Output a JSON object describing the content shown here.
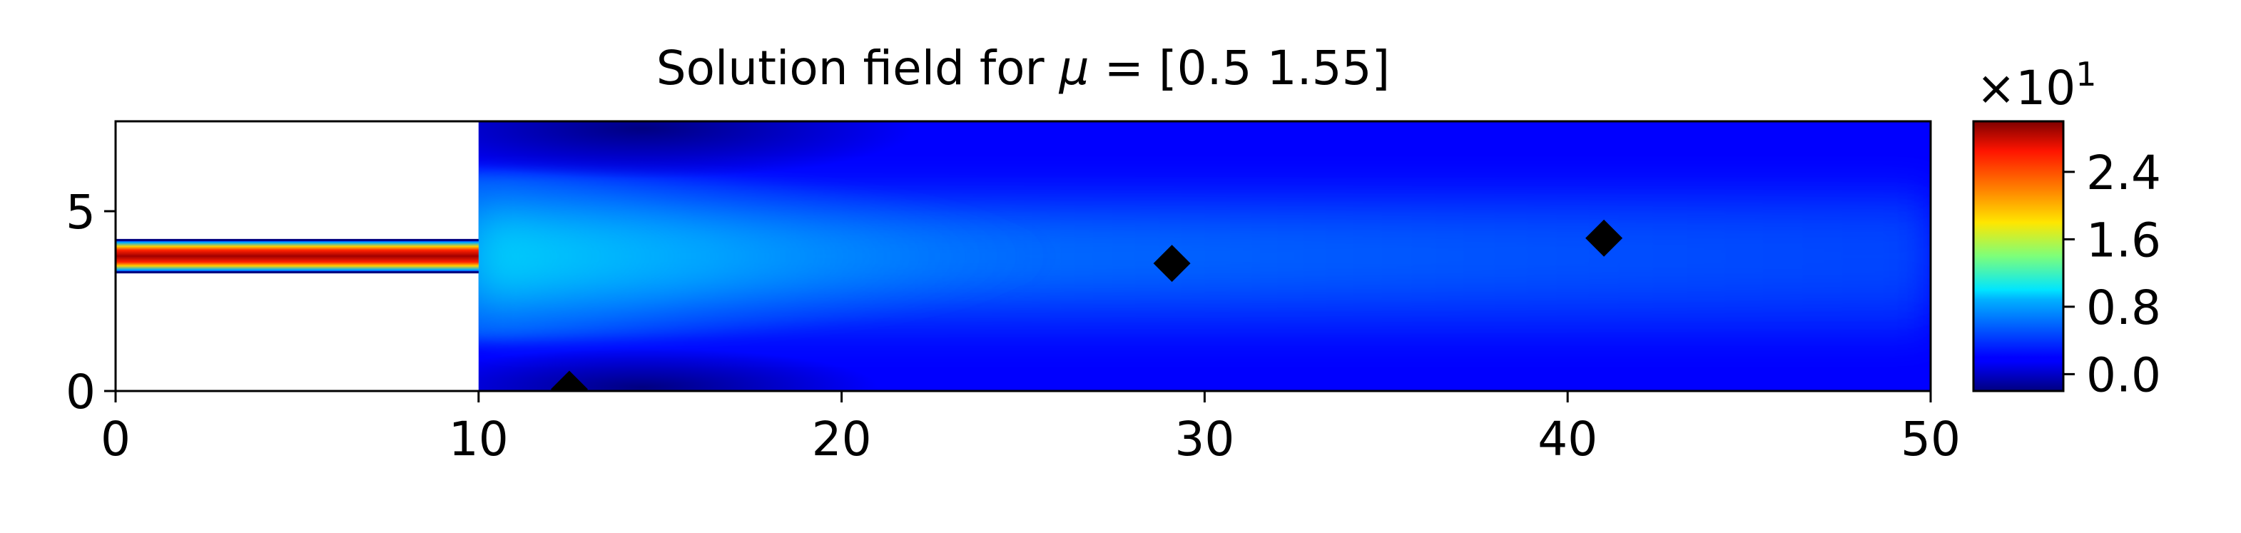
{
  "chart_data": {
    "type": "heatmap",
    "title": "Solution field for μ = [0.5  1.55]",
    "title_prefix": "Solution field for ",
    "title_mu": "μ",
    "title_suffix": " = [0.5  1.55]",
    "xlabel": "",
    "ylabel": "",
    "xlim": [
      0,
      50
    ],
    "ylim": [
      0,
      7.5
    ],
    "x_ticks": [
      0,
      10,
      20,
      30,
      40,
      50
    ],
    "y_ticks": [
      0,
      5
    ],
    "colormap": "jet",
    "colorbar": {
      "range": [
        -0.2,
        3.0
      ],
      "ticks": [
        0.0,
        0.8,
        1.6,
        2.4
      ],
      "tick_labels": [
        "0.0",
        "0.8",
        "1.6",
        "2.4"
      ],
      "scale_label": "×10",
      "scale_exponent": "1"
    },
    "domain": {
      "inlet_channel": {
        "x": [
          0,
          10
        ],
        "y": [
          3.3,
          4.2
        ]
      },
      "main_channel": {
        "x": [
          10,
          50
        ],
        "y": [
          0,
          7.5
        ]
      }
    },
    "markers": [
      {
        "x": 12.5,
        "y": 0.05
      },
      {
        "x": 29.1,
        "y": 3.55
      },
      {
        "x": 41.0,
        "y": 4.25
      }
    ],
    "marker_style": "black diamond"
  }
}
